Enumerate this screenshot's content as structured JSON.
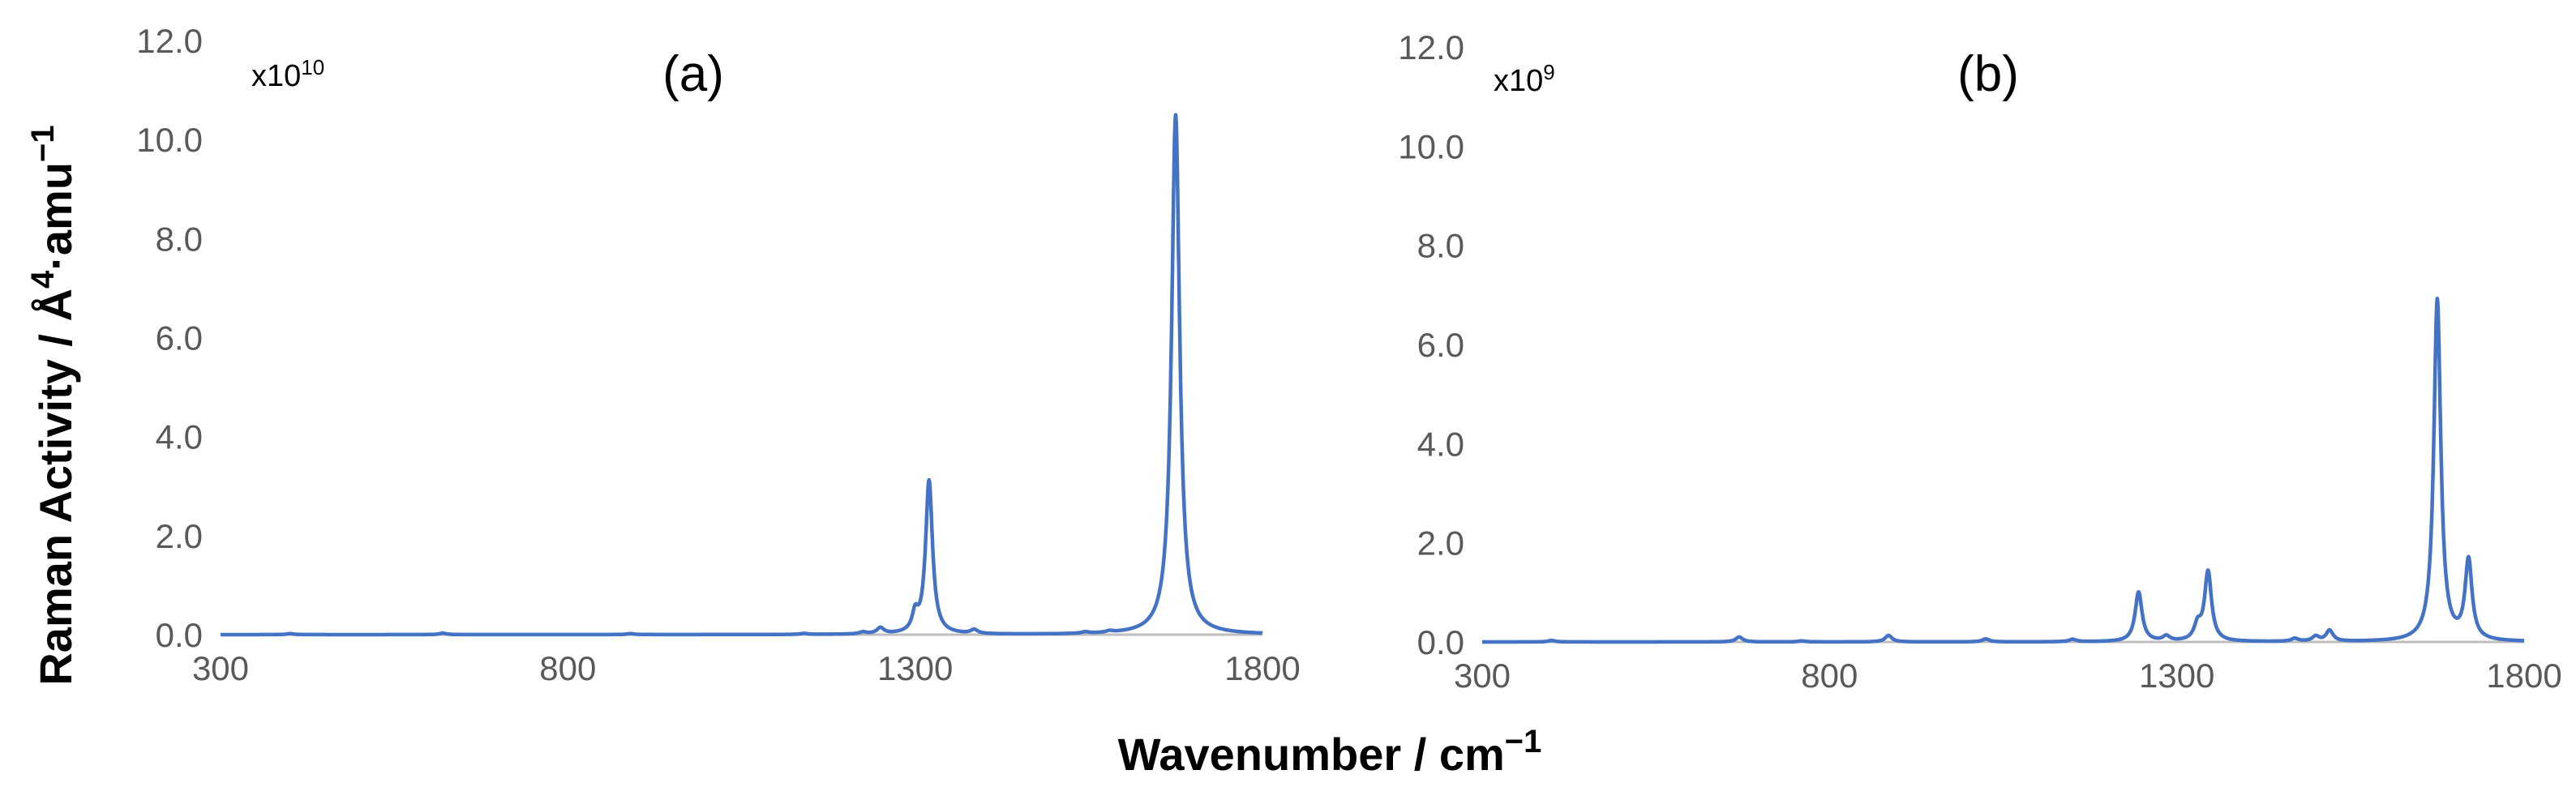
{
  "figure": {
    "xlabel_text": "Wavenumber / cm",
    "xlabel_sup": "−1",
    "ylabel_text": "Raman Activity / Å",
    "ylabel_sup1": "4",
    "ylabel_mid": "·amu",
    "ylabel_sup2": "−1",
    "line_color": "#4472c4"
  },
  "chart_data": [
    {
      "type": "line",
      "panel": "(a)",
      "multiplier_base": "x10",
      "multiplier_exp": "10",
      "xlim": [
        300,
        1800
      ],
      "ylim": [
        0,
        12
      ],
      "x_ticks": [
        300,
        800,
        1300,
        1800
      ],
      "x_tick_labels": [
        "300",
        "800",
        "1300",
        "1800"
      ],
      "y_ticks": [
        0,
        2,
        4,
        6,
        8,
        10,
        12
      ],
      "y_tick_labels": [
        "0.0",
        "2.0",
        "4.0",
        "6.0",
        "8.0",
        "10.0",
        "12.0"
      ],
      "peaks": [
        {
          "x": 400,
          "y": 0.02,
          "w": 6
        },
        {
          "x": 620,
          "y": 0.03,
          "w": 6
        },
        {
          "x": 890,
          "y": 0.02,
          "w": 6
        },
        {
          "x": 1140,
          "y": 0.02,
          "w": 6
        },
        {
          "x": 1225,
          "y": 0.04,
          "w": 6
        },
        {
          "x": 1250,
          "y": 0.12,
          "w": 6
        },
        {
          "x": 1300,
          "y": 0.35,
          "w": 5
        },
        {
          "x": 1320,
          "y": 3.1,
          "w": 6
        },
        {
          "x": 1385,
          "y": 0.08,
          "w": 6
        },
        {
          "x": 1545,
          "y": 0.03,
          "w": 6
        },
        {
          "x": 1580,
          "y": 0.03,
          "w": 6
        },
        {
          "x": 1675,
          "y": 10.5,
          "w": 7
        }
      ]
    },
    {
      "type": "line",
      "panel": "(b)",
      "multiplier_base": "x10",
      "multiplier_exp": "9",
      "xlim": [
        300,
        1800
      ],
      "ylim": [
        0,
        12
      ],
      "x_ticks": [
        300,
        800,
        1300,
        1800
      ],
      "x_tick_labels": [
        "300",
        "800",
        "1300",
        "1800"
      ],
      "y_ticks": [
        0,
        2,
        4,
        6,
        8,
        10,
        12
      ],
      "y_tick_labels": [
        "0.0",
        "2.0",
        "4.0",
        "6.0",
        "8.0",
        "10.0",
        "12.0"
      ],
      "peaks": [
        {
          "x": 400,
          "y": 0.03,
          "w": 6
        },
        {
          "x": 670,
          "y": 0.1,
          "w": 6
        },
        {
          "x": 760,
          "y": 0.02,
          "w": 6
        },
        {
          "x": 885,
          "y": 0.13,
          "w": 6
        },
        {
          "x": 1025,
          "y": 0.06,
          "w": 6
        },
        {
          "x": 1150,
          "y": 0.05,
          "w": 6
        },
        {
          "x": 1245,
          "y": 1.0,
          "w": 6
        },
        {
          "x": 1285,
          "y": 0.1,
          "w": 6
        },
        {
          "x": 1330,
          "y": 0.3,
          "w": 6
        },
        {
          "x": 1345,
          "y": 1.4,
          "w": 6
        },
        {
          "x": 1470,
          "y": 0.06,
          "w": 6
        },
        {
          "x": 1500,
          "y": 0.1,
          "w": 6
        },
        {
          "x": 1520,
          "y": 0.22,
          "w": 6
        },
        {
          "x": 1675,
          "y": 6.9,
          "w": 6
        },
        {
          "x": 1720,
          "y": 1.6,
          "w": 6
        }
      ]
    }
  ]
}
